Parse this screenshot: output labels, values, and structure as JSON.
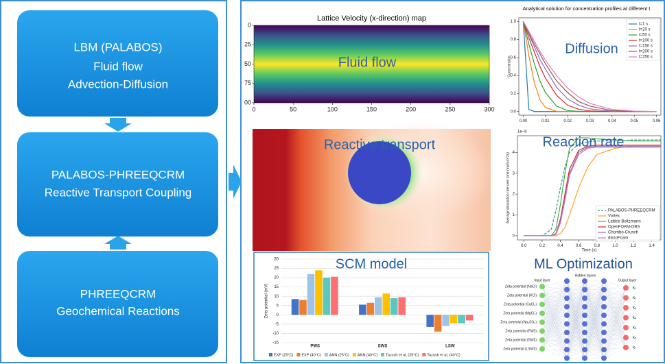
{
  "workflow": {
    "boxes": [
      {
        "lines": [
          "LBM (PALABOS)",
          "Fluid flow",
          "Advection-Diffusion"
        ]
      },
      {
        "lines": [
          "PALABOS-PHREEQCRM",
          "Reactive Transport Coupling"
        ]
      },
      {
        "lines": [
          "PHREEQCRM",
          "Geochemical Reactions"
        ]
      }
    ]
  },
  "reactive_panel": {
    "label": "Reactive transport"
  },
  "chart_data": [
    {
      "type": "heatmap",
      "title": "Lattice Velocity (x-direction) map",
      "label": "Fluid flow",
      "xlim": [
        0,
        300
      ],
      "ylim": [
        0,
        100
      ],
      "y_inverted": true,
      "xticks": [
        0,
        50,
        100,
        150,
        200,
        250,
        300
      ],
      "yticks": [
        0,
        25,
        50,
        75,
        {
          "value": 100,
          "label": "00"
        }
      ],
      "colors": [
        "#440154",
        "#3b528b",
        "#21918c",
        "#5ec962",
        "#fde725"
      ]
    },
    {
      "type": "line",
      "title": "Analytical solution for concentration profiles at different t",
      "label": "Diffusion",
      "ylabel": "Concentration",
      "x": [
        0,
        0.0025,
        0.005,
        0.0075,
        0.01,
        0.015,
        0.02,
        0.025,
        0.03,
        0.04,
        0.05,
        0.06
      ],
      "xlim": [
        -0.002,
        0.062
      ],
      "ylim": [
        -0.04,
        1.04
      ],
      "xticks": [
        {
          "value": 0,
          "label": "0.00"
        },
        {
          "value": 0.01,
          "label": "0.01"
        },
        {
          "value": 0.02,
          "label": "0.02"
        },
        {
          "value": 0.03,
          "label": "0.03"
        },
        {
          "value": 0.04,
          "label": "0.04"
        },
        {
          "value": 0.05,
          "label": "0.05"
        },
        {
          "value": 0.06,
          "label": "0.06"
        }
      ],
      "yticks": [
        {
          "value": 0,
          "label": "0.0"
        },
        {
          "value": 0.2,
          "label": "0.2"
        },
        {
          "value": 0.4,
          "label": "0.4"
        },
        {
          "value": 0.6,
          "label": "0.6"
        },
        {
          "value": 0.8,
          "label": "0.8"
        },
        {
          "value": 1,
          "label": "1.0"
        }
      ],
      "legend": "upper right",
      "series": [
        {
          "name": "t=1 s",
          "color": "#1f77b4",
          "values": [
            1,
            0.025,
            0,
            0,
            0,
            0,
            0,
            0,
            0,
            0,
            0,
            0
          ]
        },
        {
          "name": "t=20 s",
          "color": "#ff7f0e",
          "values": [
            1,
            0.62,
            0.32,
            0.13,
            0.045,
            0.003,
            0,
            0,
            0,
            0,
            0,
            0
          ]
        },
        {
          "name": "t=50 s",
          "color": "#2ca02c",
          "values": [
            1,
            0.75,
            0.53,
            0.34,
            0.21,
            0.06,
            0.011,
            0.002,
            0,
            0,
            0,
            0
          ]
        },
        {
          "name": "t=100 s",
          "color": "#d62728",
          "values": [
            1,
            0.82,
            0.66,
            0.5,
            0.37,
            0.18,
            0.07,
            0.025,
            0.007,
            0,
            0,
            0
          ]
        },
        {
          "name": "t=150 s",
          "color": "#9467bd",
          "values": [
            1,
            0.86,
            0.72,
            0.58,
            0.47,
            0.27,
            0.14,
            0.07,
            0.03,
            0.003,
            0,
            0
          ]
        },
        {
          "name": "t=200 s",
          "color": "#8c564b",
          "values": [
            1,
            0.87,
            0.75,
            0.64,
            0.53,
            0.34,
            0.21,
            0.11,
            0.06,
            0.011,
            0.002,
            0
          ]
        },
        {
          "name": "t=250 s",
          "color": "#e377c2",
          "values": [
            1,
            0.89,
            0.78,
            0.67,
            0.57,
            0.4,
            0.26,
            0.16,
            0.09,
            0.024,
            0.005,
            0.001
          ]
        }
      ]
    },
    {
      "type": "line",
      "label": "Reaction rate",
      "multiplier_label": "1e−8",
      "xlabel": "Time (s)",
      "ylabel": "Average dissolution rate over time (mol/cm^2s)",
      "x": [
        0,
        0.2,
        0.3,
        0.35,
        0.4,
        0.45,
        0.5,
        0.6,
        0.7,
        0.8,
        1.0,
        1.2,
        1.5
      ],
      "xlim": [
        -0.07,
        1.5
      ],
      "ylim": [
        -0.2,
        4.8
      ],
      "xticks": [
        {
          "value": 0,
          "label": "0.0"
        },
        {
          "value": 0.2,
          "label": "0.2"
        },
        {
          "value": 0.4,
          "label": "0.4"
        },
        {
          "value": 0.6,
          "label": "0.6"
        },
        {
          "value": 0.8,
          "label": "0.8"
        },
        {
          "value": 1,
          "label": "1.0"
        },
        {
          "value": 1.2,
          "label": "1.2"
        },
        {
          "value": 1.4,
          "label": "1.4"
        }
      ],
      "yticks": [
        0,
        1,
        2,
        3,
        4
      ],
      "legend": "lower right",
      "series": [
        {
          "name": "PALABOS-PHREEQCRM",
          "color": "#2a9d8f",
          "dashed": true,
          "values": [
            0,
            0,
            0.3,
            1.2,
            2.3,
            3.3,
            4.0,
            4.4,
            4.5,
            4.55,
            4.55,
            4.6,
            4.6
          ]
        },
        {
          "name": "Vortex",
          "color": "#ff9f2a",
          "values": [
            0,
            0,
            0,
            0,
            0.1,
            0.4,
            1.0,
            2.3,
            3.3,
            3.9,
            4.2,
            4.3,
            4.3
          ]
        },
        {
          "name": "Lattice Boltzmann",
          "color": "#44b044",
          "values": [
            0,
            0,
            0,
            0.3,
            1.5,
            3.0,
            4.2,
            4.7,
            4.7,
            4.65,
            4.6,
            4.55,
            4.55
          ]
        },
        {
          "name": "OpenFOAM-DBS",
          "color": "#d62728",
          "values": [
            0,
            0,
            0,
            0.1,
            0.8,
            2.0,
            3.2,
            4.1,
            4.3,
            4.35,
            4.35,
            4.35,
            4.35
          ]
        },
        {
          "name": "Chombo-Crunch",
          "color": "#9467bd",
          "values": [
            0,
            0,
            0,
            0.1,
            0.7,
            1.8,
            3.0,
            4.0,
            4.25,
            4.3,
            4.3,
            4.3,
            4.3
          ]
        },
        {
          "name": "dissoFoam",
          "color": "#c97bb5",
          "values": [
            0,
            0,
            0,
            0.05,
            0.6,
            1.7,
            2.9,
            3.9,
            4.2,
            4.25,
            4.25,
            4.25,
            4.25
          ]
        }
      ]
    },
    {
      "type": "bar",
      "title": "SCM model",
      "ylabel": "Zeta potential (mV)",
      "categories": [
        "PWS",
        "SWS",
        "LSW"
      ],
      "ylim": [
        -15,
        30
      ],
      "yticks": [
        -15,
        -10,
        -5,
        0,
        5,
        10,
        15,
        20,
        25,
        30
      ],
      "grid": true,
      "series": [
        {
          "name": "EXP (25°C)",
          "color": "#4472c4",
          "values": [
            8.5,
            5.5,
            -6.5
          ]
        },
        {
          "name": "EXP (40°C)",
          "color": "#ed7d31",
          "values": [
            8,
            6.5,
            -9
          ]
        },
        {
          "name": "ANN (25°C)",
          "color": "#9dc3e6",
          "values": [
            22,
            9.5,
            -6
          ]
        },
        {
          "name": "ANN (40°C)",
          "color": "#ffc000",
          "values": [
            24,
            11.5,
            -4.5
          ]
        },
        {
          "name": "Tazosh et al. (25°C)",
          "color": "#5bc8c0",
          "values": [
            20,
            9,
            -4.5
          ]
        },
        {
          "name": "Tazosh et al. (40°C)",
          "color": "#ff6f6f",
          "values": [
            20.5,
            9.5,
            -3
          ]
        }
      ]
    }
  ],
  "ml": {
    "title": "ML Optimization",
    "input_label": "Input layer",
    "hidden_label": "Hidden layers",
    "output_label": "Output layer",
    "inputs": [
      "Zeta potential (NaCl)",
      "Zeta potential (KCl)",
      "Zeta potential (CaCl₂)",
      "Zeta potential (MgCl₂)",
      "Zeta potential (Na₂SO₄)",
      "Zeta potential (FW3)",
      "Zeta potential (SW3)",
      "Zeta potential (LSW3)"
    ],
    "outputs": [
      "k₁",
      "k₂",
      "k₃",
      "k₄",
      "k₅",
      "k₆",
      "k₇"
    ]
  }
}
